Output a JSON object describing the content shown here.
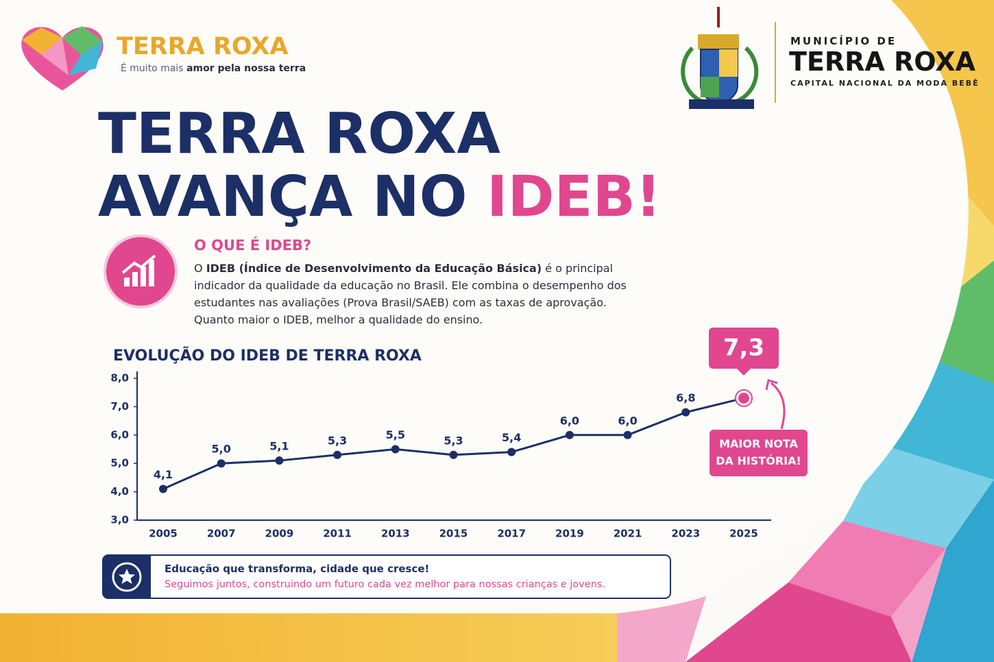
{
  "brand": {
    "name": "TERRA ROXA",
    "tagline_start": "É muito mais ",
    "tagline_bold": "amor pela nossa terra"
  },
  "municipality": {
    "prefix": "MUNICÍPIO DE",
    "name": "TERRA ROXA",
    "slogan": "CAPITAL NACIONAL DA MODA BEBÊ"
  },
  "headline": {
    "line1": "TERRA ROXA",
    "line2": "AVANÇA NO ",
    "highlight": "IDEB!"
  },
  "about": {
    "title": "O QUE É IDEB?",
    "intro": "O ",
    "bold": "IDEB (Índice de Desenvolvimento da Educação Básica)",
    "text": " é o principal indicador da qualidade da educação no Brasil. Ele combina o desempenho dos estudantes nas avaliações (Prova Brasil/SAEB) com as taxas de aprovação. Quanto maior o IDEB, melhor a qualidade do ensino."
  },
  "chart_data": {
    "type": "line",
    "title": "EVOLUÇÃO DO IDEB DE TERRA ROXA",
    "categories": [
      "2005",
      "2007",
      "2009",
      "2011",
      "2013",
      "2015",
      "2017",
      "2019",
      "2021",
      "2023",
      "2025"
    ],
    "values": [
      4.1,
      5.0,
      5.1,
      5.3,
      5.5,
      5.3,
      5.4,
      6.0,
      6.0,
      6.8,
      7.3
    ],
    "value_labels": [
      "4,1",
      "5,0",
      "5,1",
      "5,3",
      "5,5",
      "5,3",
      "5,4",
      "6,0",
      "6,0",
      "6,8",
      "7,3"
    ],
    "color": "#1c2f66",
    "highlight_color": "#e0478f",
    "ylim": [
      3,
      8
    ],
    "yticks": [
      {
        "value": 3,
        "label": "3,0"
      },
      {
        "value": 4,
        "label": "4,0"
      },
      {
        "value": 5,
        "label": "5,0"
      },
      {
        "value": 6,
        "label": "6,0"
      },
      {
        "value": 7,
        "label": "7,0"
      },
      {
        "value": 8,
        "label": "8,0"
      }
    ],
    "annotation": "MAIOR NOTA DA HISTÓRIA!"
  },
  "footer": {
    "title": "Educação que transforma, cidade que cresce!",
    "text": "Seguimos juntos, construindo um futuro cada vez melhor para nossas crianças e jovens."
  }
}
